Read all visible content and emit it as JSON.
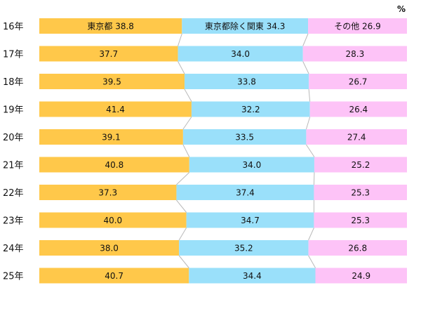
{
  "chart_data": {
    "type": "bar",
    "orientation": "horizontal",
    "stacked": true,
    "normalized": true,
    "unit": "%",
    "categories": [
      "16年",
      "17年",
      "18年",
      "19年",
      "20年",
      "21年",
      "22年",
      "23年",
      "24年",
      "25年"
    ],
    "series": [
      {
        "name": "東京都",
        "color": "#FFC84A",
        "values": [
          38.8,
          37.7,
          39.5,
          41.4,
          39.1,
          40.8,
          37.3,
          40.0,
          38.0,
          40.7
        ]
      },
      {
        "name": "東京都除く関東",
        "color": "#9AE0FA",
        "values": [
          34.3,
          34.0,
          33.8,
          32.2,
          33.5,
          34.0,
          37.4,
          34.7,
          35.2,
          34.4
        ]
      },
      {
        "name": "その他",
        "color": "#FDC3F7",
        "values": [
          26.9,
          28.3,
          26.7,
          26.4,
          27.4,
          25.2,
          25.3,
          25.3,
          26.8,
          24.9
        ]
      }
    ],
    "first_row_labels": [
      "東京都 38.8",
      "東京都除く関東 34.3",
      "その他 26.9"
    ],
    "legend": "inline-first-row",
    "grid": false
  }
}
